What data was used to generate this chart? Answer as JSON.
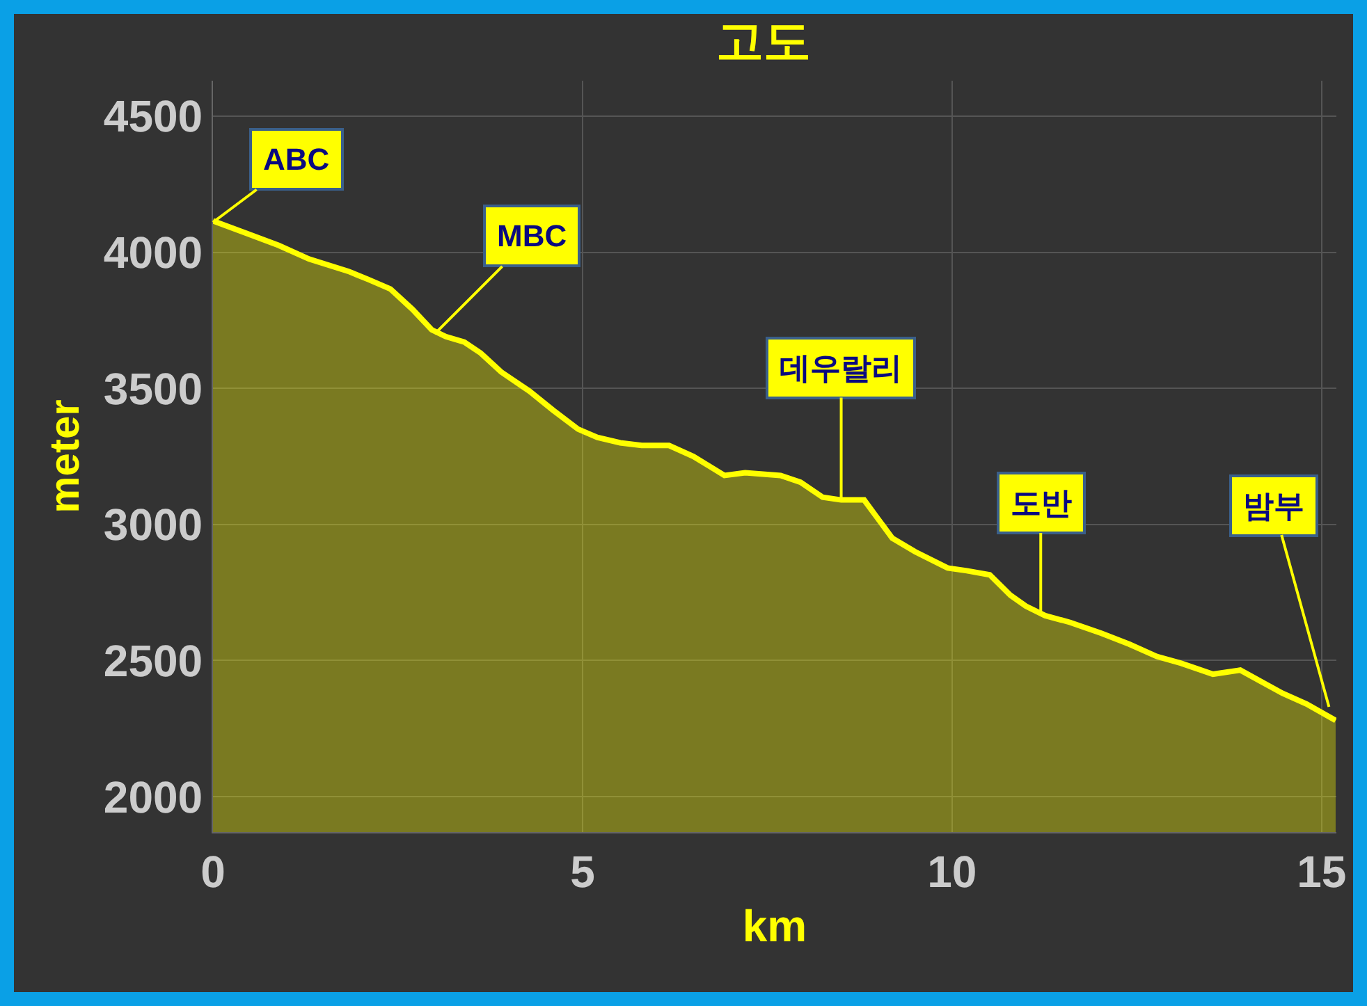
{
  "chart_data": {
    "type": "area",
    "title": "고도",
    "xlabel": "km",
    "ylabel": "meter",
    "x": [
      0,
      0.45,
      0.89,
      1.3,
      1.83,
      2.1,
      2.4,
      2.7,
      2.96,
      3.15,
      3.4,
      3.62,
      3.9,
      4.28,
      4.6,
      4.94,
      5.2,
      5.51,
      5.8,
      6.17,
      6.5,
      6.92,
      7.2,
      7.68,
      7.95,
      8.25,
      8.5,
      8.81,
      9.0,
      9.19,
      9.5,
      9.94,
      10.2,
      10.51,
      10.79,
      11.0,
      11.26,
      11.6,
      12.02,
      12.4,
      12.77,
      13.1,
      13.53,
      13.9,
      14.2,
      14.47,
      14.8,
      15.19
    ],
    "series": [
      {
        "color": "#ffff00",
        "values": [
          4115,
          4070,
          4025,
          3975,
          3930,
          3900,
          3865,
          3790,
          3715,
          3690,
          3670,
          3630,
          3560,
          3490,
          3420,
          3350,
          3320,
          3300,
          3290,
          3290,
          3250,
          3180,
          3190,
          3180,
          3155,
          3100,
          3090,
          3090,
          3020,
          2950,
          2900,
          2840,
          2830,
          2815,
          2740,
          2700,
          2665,
          2640,
          2600,
          2560,
          2515,
          2490,
          2450,
          2465,
          2420,
          2380,
          2340,
          2280
        ]
      }
    ],
    "xlim": [
      0,
      15.2
    ],
    "xticks": [
      0,
      5,
      10,
      15
    ],
    "ylim": [
      1870,
      4630
    ],
    "yticks": [
      2000,
      2500,
      3000,
      3500,
      4000,
      4500
    ],
    "grid": true,
    "annotations": [
      {
        "text": "ABC",
        "x": 0,
        "y": 4110
      },
      {
        "text": "MBC",
        "x": 3.0,
        "y": 3700
      },
      {
        "text": "데우랄리",
        "x": 8.5,
        "y": 3090
      },
      {
        "text": "도반",
        "x": 11.2,
        "y": 2670
      },
      {
        "text": "밤부",
        "x": 15.1,
        "y": 2330
      }
    ]
  }
}
